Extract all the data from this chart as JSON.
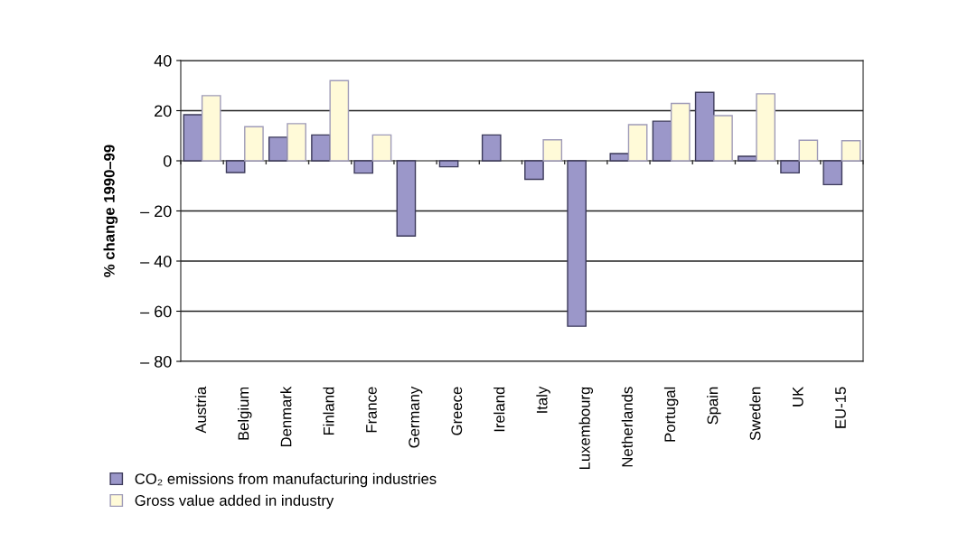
{
  "chart_data": {
    "type": "bar",
    "ylabel": "% change 1990–99",
    "categories": [
      "Austria",
      "Belgium",
      "Denmark",
      "Finland",
      "France",
      "Germany",
      "Greece",
      "Ireland",
      "Italy",
      "Luxembourg",
      "Netherlands",
      "Portugal",
      "Spain",
      "Sweden",
      "UK",
      "EU-15"
    ],
    "series": [
      {
        "name": "CO₂ emissions from manufacturing industries",
        "color": "#9b97c9",
        "values": [
          18.4,
          -4.7,
          9.4,
          10.3,
          -4.9,
          -30,
          -2.4,
          10.3,
          -7.4,
          -66,
          2.9,
          15.8,
          27.3,
          1.8,
          -4.8,
          -9.5
        ]
      },
      {
        "name": "Gross value added in industry",
        "color": "#fffad8",
        "values": [
          26,
          13.6,
          14.8,
          32,
          10.3,
          null,
          null,
          null,
          8.4,
          null,
          14.4,
          22.9,
          18,
          26.7,
          8.2,
          8
        ]
      }
    ],
    "ylim": [
      -80,
      40
    ],
    "yticks": [
      {
        "value": -80,
        "label": "– 80"
      },
      {
        "value": -60,
        "label": "– 60"
      },
      {
        "value": -40,
        "label": "– 40"
      },
      {
        "value": -20,
        "label": "– 20"
      },
      0,
      20,
      40
    ],
    "grid": "y",
    "legend": "bottom left"
  }
}
